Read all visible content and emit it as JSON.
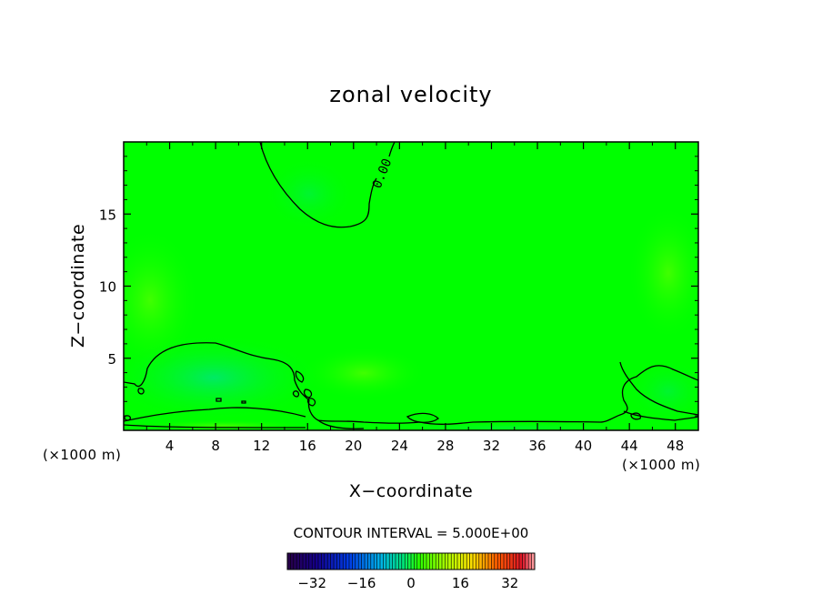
{
  "chart_data": {
    "type": "heatmap",
    "title": "zonal velocity",
    "xlabel": "X−coordinate",
    "ylabel": "Z−coordinate",
    "x_unit_label": "(×1000 m)",
    "z_unit_label": "(×1000 m)",
    "xlim": [
      0,
      50
    ],
    "ylim": [
      0,
      20
    ],
    "x_ticks": [
      4,
      8,
      12,
      16,
      20,
      24,
      28,
      32,
      36,
      40,
      44,
      48
    ],
    "y_ticks": [
      5,
      10,
      15
    ],
    "contour_label": "0.00",
    "contour_interval_text": "CONTOUR INTERVAL = 5.000E+00",
    "colorbar": {
      "range": [
        -40,
        40
      ],
      "ticks": [
        -32,
        -16,
        0,
        16,
        32
      ],
      "tick_labels": [
        "−32",
        "−16",
        "0",
        "16",
        "32"
      ]
    },
    "colors": {
      "field": "#00ff00",
      "weak_positive": "#33ff00",
      "weak_negative": "#00f23a",
      "contour": "#000000"
    }
  }
}
